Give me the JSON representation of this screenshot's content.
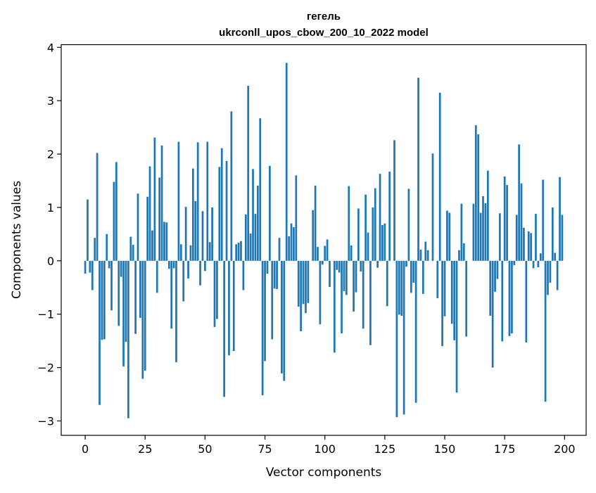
{
  "chart_data": {
    "type": "bar",
    "title_line1": "гегель",
    "title_line2": "ukrconll_upos_cbow_200_10_2022 model",
    "xlabel": "Vector components",
    "ylabel": "Components values",
    "xlim": [
      -10,
      209
    ],
    "ylim": [
      -3.27,
      4.05
    ],
    "x_ticks": [
      0,
      25,
      50,
      75,
      100,
      125,
      150,
      175,
      200
    ],
    "y_ticks": [
      -3,
      -2,
      -1,
      0,
      1,
      2,
      3,
      4
    ],
    "x_tick_labels": [
      "0",
      "25",
      "50",
      "75",
      "100",
      "125",
      "150",
      "175",
      "200"
    ],
    "y_tick_labels": [
      "−3",
      "−2",
      "−1",
      "0",
      "1",
      "2",
      "3",
      "4"
    ],
    "bar_color": "#1f77b4",
    "grid": false,
    "values": [
      -0.24,
      1.15,
      -0.22,
      -0.55,
      0.43,
      2.02,
      -2.7,
      -1.48,
      -1.47,
      0.5,
      -0.14,
      -0.93,
      1.48,
      1.85,
      -1.22,
      -0.3,
      -1.98,
      -1.52,
      -2.95,
      0.45,
      0.3,
      -1.37,
      1.26,
      -1.07,
      -2.21,
      -2.06,
      1.2,
      1.77,
      0.57,
      2.31,
      -0.6,
      1.56,
      2.16,
      0.73,
      0.72,
      -0.15,
      -1.27,
      -0.14,
      -1.9,
      2.23,
      0.31,
      -0.76,
      1.01,
      -0.33,
      0.29,
      1.73,
      1.12,
      2.22,
      -0.46,
      0.93,
      -0.19,
      2.23,
      0.35,
      1.0,
      -1.24,
      -1.09,
      1.76,
      2.11,
      -2.55,
      1.87,
      -1.77,
      2.8,
      -1.69,
      0.31,
      0.34,
      0.37,
      -0.55,
      0.87,
      3.28,
      0.51,
      1.72,
      0.88,
      1.41,
      2.67,
      -2.52,
      -1.88,
      -0.24,
      1.78,
      -1.47,
      -0.52,
      -0.53,
      0.43,
      -2.11,
      -2.25,
      3.71,
      0.46,
      0.7,
      0.63,
      1.6,
      -0.86,
      -1.32,
      -0.81,
      -0.98,
      -0.79,
      0.0,
      0.95,
      1.41,
      0.26,
      -1.19,
      -0.07,
      0.28,
      0.4,
      -0.49,
      0.0,
      -1.72,
      -0.17,
      -0.22,
      -1.36,
      -0.57,
      -0.64,
      1.4,
      0.29,
      -0.95,
      -0.59,
      0.98,
      -0.2,
      -1.27,
      1.24,
      0.53,
      -1.58,
      1.0,
      1.36,
      -0.13,
      1.63,
      0.67,
      0.7,
      -0.85,
      1.67,
      0.0,
      2.26,
      -2.93,
      -1.01,
      -1.03,
      -2.88,
      -0.11,
      1.35,
      -0.6,
      -0.41,
      -2.66,
      3.43,
      0.21,
      -0.62,
      0.36,
      0.2,
      0.0,
      2.01,
      0.0,
      -0.7,
      3.15,
      -1.6,
      -1.04,
      0.94,
      0.9,
      -1.18,
      -1.49,
      -2.47,
      0.2,
      1.07,
      0.33,
      -1.42,
      0.0,
      0.0,
      1.07,
      2.54,
      2.37,
      0.9,
      1.21,
      1.08,
      1.69,
      -1.03,
      -2.0,
      -0.58,
      -0.34,
      0.89,
      -1.51,
      1.58,
      1.42,
      -1.41,
      -1.36,
      -0.08,
      0.86,
      2.18,
      1.45,
      0.62,
      -1.53,
      0.55,
      0.52,
      -0.14,
      0.88,
      -0.12,
      0.14,
      1.52,
      -2.64,
      -0.64,
      -0.41,
      1.0,
      0.15,
      -0.55,
      1.57,
      0.86
    ]
  }
}
